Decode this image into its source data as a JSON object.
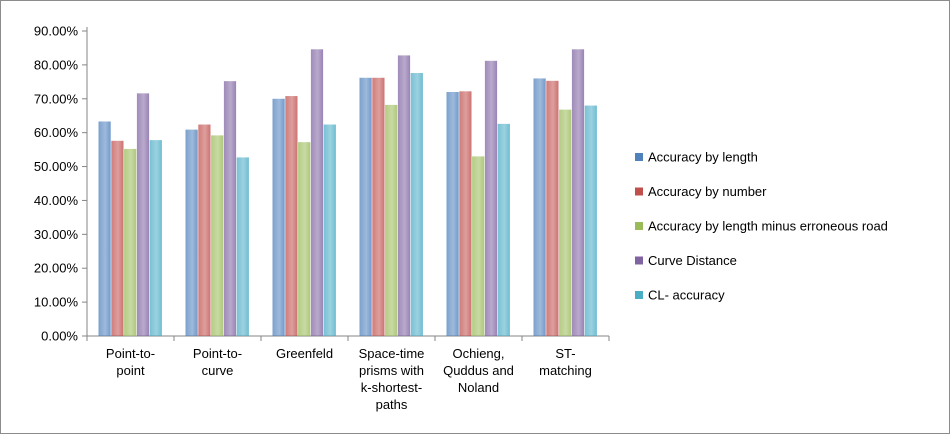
{
  "chart_data": {
    "type": "bar",
    "title": "",
    "xlabel": "",
    "ylabel": "",
    "categories": [
      "Point-to-point",
      "Point-to-curve",
      "Greenfeld",
      "Space-time prisms with k-shortest-paths",
      "Ochieng, Quddus and Noland",
      "ST-matching"
    ],
    "category_label_lines": [
      [
        "Point-to-",
        "point"
      ],
      [
        "Point-to-",
        "curve"
      ],
      [
        "Greenfeld"
      ],
      [
        "Space-time",
        "prisms with",
        "k-shortest-",
        "paths"
      ],
      [
        "Ochieng,",
        "Quddus and",
        "Noland"
      ],
      [
        "ST-",
        "matching"
      ]
    ],
    "series": [
      {
        "name": "Accuracy by length",
        "color": "#4F81BD",
        "values": [
          63.3,
          60.9,
          70.0,
          76.2,
          72.0,
          76.0
        ]
      },
      {
        "name": "Accuracy by number",
        "color": "#C0504D",
        "values": [
          57.6,
          62.4,
          70.8,
          76.2,
          72.2,
          75.3
        ]
      },
      {
        "name": "Accuracy by length minus erroneous road",
        "color": "#9BBB59",
        "values": [
          55.2,
          59.2,
          57.2,
          68.2,
          53.0,
          66.8
        ]
      },
      {
        "name": "Curve Distance",
        "color": "#8064A2",
        "values": [
          71.6,
          75.2,
          84.6,
          82.8,
          81.2,
          84.6
        ]
      },
      {
        "name": "CL- accuracy",
        "color": "#4BACC6",
        "values": [
          57.8,
          52.7,
          62.4,
          77.6,
          62.6,
          68.0
        ]
      }
    ],
    "ylim": [
      0,
      90
    ],
    "yticks": [
      "0.00%",
      "10.00%",
      "20.00%",
      "30.00%",
      "40.00%",
      "50.00%",
      "60.00%",
      "70.00%",
      "80.00%",
      "90.00%"
    ],
    "grid": false,
    "legend_position": "right"
  }
}
